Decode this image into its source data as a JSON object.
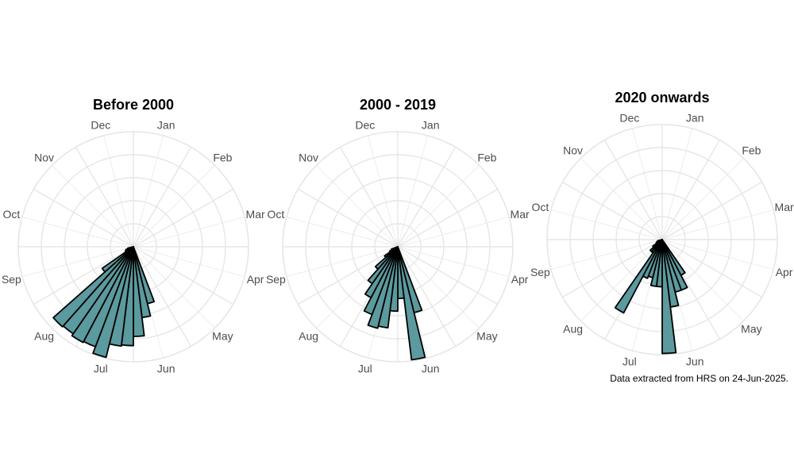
{
  "caption": "Data extracted from HRS on 24-Jun-2025.",
  "colors": {
    "bar_fill": "#5b9a9e",
    "bar_stroke": "#000000",
    "grid": "#e6e6e6",
    "month_label": "#4d4d4d",
    "title": "#000000"
  },
  "chart_data": [
    {
      "type": "bar",
      "polar": true,
      "title": "Before 2000",
      "month_labels": [
        "Jan",
        "Feb",
        "Mar",
        "Apr",
        "May",
        "Jun",
        "Jul",
        "Aug",
        "Sep",
        "Oct",
        "Nov",
        "Dec"
      ],
      "week_starts": [
        23,
        24,
        25,
        26,
        27,
        28,
        29,
        30,
        31,
        32,
        33,
        34,
        35,
        36
      ],
      "values": [
        0.51,
        0.62,
        0.78,
        0.86,
        0.87,
        0.99,
        0.93,
        0.94,
        0.92,
        0.93,
        0.33,
        0.08,
        0.07,
        0.05
      ],
      "ylim": [
        0,
        1
      ],
      "grid": true,
      "n_sectors": 52
    },
    {
      "type": "bar",
      "polar": true,
      "title": "2000 - 2019",
      "month_labels": [
        "Jan",
        "Feb",
        "Mar",
        "Apr",
        "May",
        "Jun",
        "Jul",
        "Aug",
        "Sep",
        "Oct",
        "Nov",
        "Dec"
      ],
      "week_starts": [
        23,
        24,
        25,
        26,
        27,
        28,
        29,
        30,
        31,
        32,
        33,
        34,
        35
      ],
      "values": [
        0.59,
        0.99,
        0.45,
        0.56,
        0.71,
        0.73,
        0.63,
        0.5,
        0.39,
        0.26,
        0.14,
        0.08,
        0.06
      ],
      "ylim": [
        0,
        1
      ],
      "grid": true,
      "n_sectors": 52
    },
    {
      "type": "bar",
      "polar": true,
      "title": "2020 onwards",
      "month_labels": [
        "Jan",
        "Feb",
        "Mar",
        "Apr",
        "May",
        "Jun",
        "Jul",
        "Aug",
        "Sep",
        "Oct",
        "Nov",
        "Dec"
      ],
      "week_starts": [
        21,
        22,
        23,
        24,
        25,
        26,
        27,
        28,
        29,
        30,
        31,
        32,
        33,
        34,
        35,
        36
      ],
      "values": [
        0.35,
        0.47,
        0.47,
        0.59,
        0.99,
        0.41,
        0.41,
        0.34,
        0.36,
        0.72,
        0.14,
        0.14,
        0.1,
        0.06,
        0.05,
        0.04
      ],
      "ylim": [
        0,
        1
      ],
      "grid": true,
      "n_sectors": 52
    }
  ]
}
